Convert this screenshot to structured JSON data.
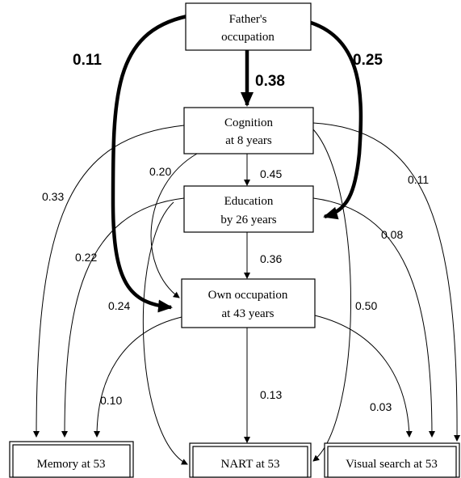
{
  "nodes": [
    {
      "lines": [
        "Father's",
        "occupation"
      ]
    },
    {
      "lines": [
        "Cognition",
        "at 8 years"
      ]
    },
    {
      "lines": [
        "Education",
        "by 26 years"
      ]
    },
    {
      "lines": [
        "Own occupation",
        "at 43 years"
      ]
    },
    {
      "lines": [
        "Memory at 53"
      ]
    },
    {
      "lines": [
        "NART at 53"
      ]
    },
    {
      "lines": [
        "Visual search at 53"
      ]
    }
  ],
  "edges": [
    {
      "label": "0.11"
    },
    {
      "label": "0.38"
    },
    {
      "label": "0.25"
    },
    {
      "label": "0.20"
    },
    {
      "label": "0.45"
    },
    {
      "label": "0.33"
    },
    {
      "label": "0.11"
    },
    {
      "label": "0.22"
    },
    {
      "label": "0.36"
    },
    {
      "label": "0.08"
    },
    {
      "label": "0.24"
    },
    {
      "label": "0.50"
    },
    {
      "label": "0.10"
    },
    {
      "label": "0.13"
    },
    {
      "label": "0.03"
    }
  ]
}
